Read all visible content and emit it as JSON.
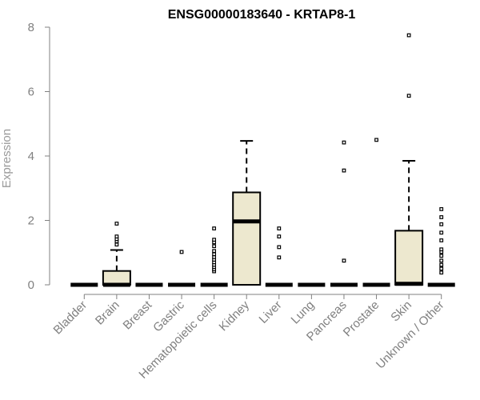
{
  "chart_data": {
    "type": "boxplot",
    "title": "ENSG00000183640 - KRTAP8-1",
    "xlabel": "",
    "ylabel": "Expression",
    "ylim": [
      0,
      8
    ],
    "yticks": [
      0,
      2,
      4,
      6,
      8
    ],
    "grid": false,
    "colors": {
      "box_fill": "#ede8cf",
      "stroke": "#000000",
      "axis": "#808080"
    },
    "categories": [
      "Bladder",
      "Brain",
      "Breast",
      "Gastric",
      "Hematopoietic cells",
      "Kidney",
      "Liver",
      "Lung",
      "Pancreas",
      "Prostate",
      "Skin",
      "Unknown / Other"
    ],
    "boxes": [
      {
        "category": "Bladder",
        "q1": 0,
        "median": 0,
        "q3": 0,
        "whisker_low": 0,
        "whisker_high": 0,
        "outliers": []
      },
      {
        "category": "Brain",
        "q1": 0,
        "median": 0,
        "q3": 0.43,
        "whisker_low": 0,
        "whisker_high": 1.08,
        "outliers": [
          1.25,
          1.35,
          1.42,
          1.5,
          1.9
        ]
      },
      {
        "category": "Breast",
        "q1": 0,
        "median": 0,
        "q3": 0,
        "whisker_low": 0,
        "whisker_high": 0,
        "outliers": []
      },
      {
        "category": "Gastric",
        "q1": 0,
        "median": 0,
        "q3": 0,
        "whisker_low": 0,
        "whisker_high": 0,
        "outliers": [
          1.02
        ]
      },
      {
        "category": "Hematopoietic cells",
        "q1": 0,
        "median": 0,
        "q3": 0,
        "whisker_low": 0,
        "whisker_high": 0,
        "outliers": [
          0.42,
          0.48,
          0.55,
          0.62,
          0.7,
          0.78,
          0.86,
          0.95,
          1.05,
          1.2,
          1.32,
          1.4,
          1.75
        ]
      },
      {
        "category": "Kidney",
        "q1": 0,
        "median": 1.97,
        "q3": 2.87,
        "whisker_low": 0,
        "whisker_high": 4.47,
        "outliers": []
      },
      {
        "category": "Liver",
        "q1": 0,
        "median": 0,
        "q3": 0,
        "whisker_low": 0,
        "whisker_high": 0,
        "outliers": [
          0.85,
          1.17,
          1.5,
          1.75
        ]
      },
      {
        "category": "Lung",
        "q1": 0,
        "median": 0,
        "q3": 0,
        "whisker_low": 0,
        "whisker_high": 0,
        "outliers": []
      },
      {
        "category": "Pancreas",
        "q1": 0,
        "median": 0,
        "q3": 0,
        "whisker_low": 0,
        "whisker_high": 0,
        "outliers": [
          0.75,
          3.55,
          4.42
        ]
      },
      {
        "category": "Prostate",
        "q1": 0,
        "median": 0,
        "q3": 0,
        "whisker_low": 0,
        "whisker_high": 0,
        "outliers": [
          4.5
        ]
      },
      {
        "category": "Skin",
        "q1": 0,
        "median": 0.03,
        "q3": 1.68,
        "whisker_low": 0,
        "whisker_high": 3.85,
        "outliers": [
          5.87,
          7.75
        ]
      },
      {
        "category": "Unknown / Other",
        "q1": 0,
        "median": 0,
        "q3": 0,
        "whisker_low": 0,
        "whisker_high": 0,
        "outliers": [
          0.38,
          0.5,
          0.62,
          0.75,
          0.9,
          1.02,
          1.1,
          1.38,
          1.62,
          1.88,
          2.1,
          2.35
        ]
      }
    ]
  }
}
